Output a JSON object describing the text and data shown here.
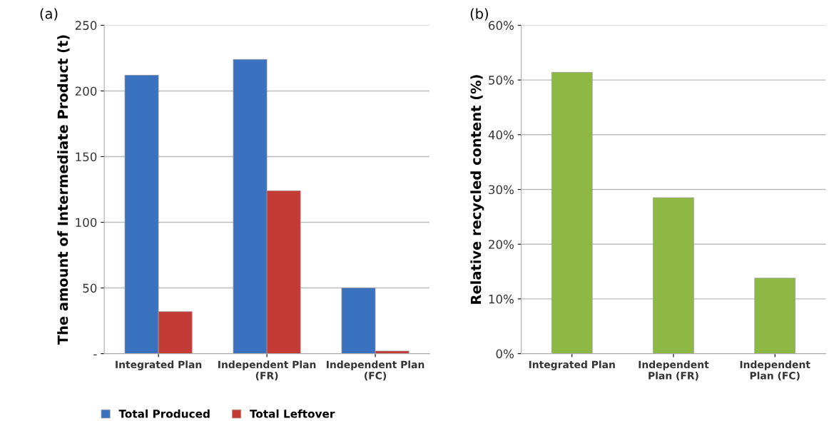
{
  "chart_data": [
    {
      "type": "bar",
      "annotations": [
        "(a)"
      ],
      "ylabel": "The amount of Intermediate Product (t)",
      "categories": [
        "Integrated Plan",
        "Independent Plan\n(FR)",
        "Independent Plan\n(FC)"
      ],
      "series": [
        {
          "name": "Total Produced",
          "color": "#3a72c0",
          "values": [
            212,
            224,
            50
          ]
        },
        {
          "name": "Total Leftover",
          "color": "#c43a35",
          "values": [
            32,
            124,
            2
          ]
        }
      ],
      "ylim": [
        0,
        250
      ],
      "yticks": [
        {
          "value": 0,
          "label": "-"
        },
        50,
        100,
        150,
        200,
        250
      ],
      "grid": "y",
      "legend": "bottom"
    },
    {
      "type": "bar",
      "annotations": [
        "(b)"
      ],
      "ylabel": "Relative recycled content (%)",
      "categories": [
        "Integrated Plan",
        "Independent\nPlan (FR)",
        "Independent\nPlan (FC)"
      ],
      "series": [
        {
          "color": "#8db843",
          "values": [
            51.4,
            28.5,
            13.8
          ]
        }
      ],
      "ylim": [
        0,
        60
      ],
      "yticks": [
        {
          "value": 0,
          "label": "0%"
        },
        {
          "value": 10,
          "label": "10%"
        },
        {
          "value": 20,
          "label": "20%"
        },
        {
          "value": 30,
          "label": "30%"
        },
        {
          "value": 40,
          "label": "40%"
        },
        {
          "value": 50,
          "label": "50%"
        },
        {
          "value": 60,
          "label": "60%"
        }
      ],
      "grid": "y"
    }
  ]
}
